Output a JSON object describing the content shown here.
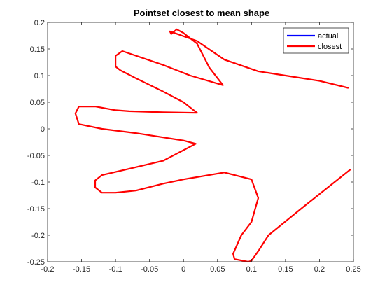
{
  "chart_data": {
    "type": "line",
    "title": "Pointset closest to mean shape",
    "xlabel": "",
    "ylabel": "",
    "xlim": [
      -0.2,
      0.25
    ],
    "ylim": [
      -0.25,
      0.2
    ],
    "x_ticks": [
      -0.2,
      -0.15,
      -0.1,
      -0.05,
      0,
      0.05,
      0.1,
      0.15,
      0.2,
      0.25
    ],
    "x_tick_labels": [
      "-0.2",
      "-0.15",
      "-0.1",
      "-0.05",
      "0",
      "0.05",
      "0.1",
      "0.15",
      "0.2",
      "0.25"
    ],
    "y_ticks": [
      -0.25,
      -0.2,
      -0.15,
      -0.1,
      -0.05,
      0,
      0.05,
      0.1,
      0.15,
      0.2
    ],
    "y_tick_labels": [
      "-0.25",
      "-0.2",
      "-0.15",
      "-0.1",
      "-0.05",
      "0",
      "0.05",
      "0.1",
      "0.15",
      "0.2"
    ],
    "grid": false,
    "box": true,
    "legend": {
      "placement": "top-right",
      "entries": [
        {
          "name": "actual",
          "color": "#0000ff"
        },
        {
          "name": "closest",
          "color": "#ff0000"
        }
      ]
    },
    "series": [
      {
        "name": "closest",
        "color": "#ff0000",
        "x": [
          0.242,
          0.2,
          0.15,
          0.11,
          0.06,
          0.02,
          -0.02,
          -0.018,
          -0.01,
          0.0,
          0.02,
          0.038,
          0.058,
          0.01,
          -0.03,
          -0.09,
          -0.1,
          -0.1,
          -0.093,
          -0.07,
          -0.03,
          0.0,
          0.02,
          -0.03,
          -0.08,
          -0.1,
          -0.13,
          -0.154,
          -0.159,
          -0.154,
          -0.12,
          -0.07,
          -0.03,
          0.0,
          0.018,
          -0.03,
          -0.09,
          -0.12,
          -0.13,
          -0.13,
          -0.12,
          -0.1,
          -0.07,
          -0.03,
          0.0,
          0.06,
          0.1,
          0.11,
          0.1,
          0.085,
          0.073,
          0.075,
          0.095,
          0.1,
          0.11,
          0.125,
          0.175,
          0.245
        ],
        "y": [
          0.077,
          0.09,
          0.1,
          0.108,
          0.13,
          0.165,
          0.183,
          0.178,
          0.187,
          0.18,
          0.16,
          0.115,
          0.082,
          0.1,
          0.12,
          0.146,
          0.137,
          0.117,
          0.11,
          0.095,
          0.07,
          0.05,
          0.03,
          0.031,
          0.033,
          0.035,
          0.042,
          0.042,
          0.029,
          0.009,
          0.0,
          -0.008,
          -0.016,
          -0.022,
          -0.028,
          -0.06,
          -0.078,
          -0.087,
          -0.097,
          -0.11,
          -0.12,
          -0.12,
          -0.116,
          -0.103,
          -0.095,
          -0.082,
          -0.095,
          -0.13,
          -0.175,
          -0.2,
          -0.235,
          -0.245,
          -0.25,
          -0.248,
          -0.23,
          -0.2,
          -0.148,
          -0.077
        ]
      }
    ]
  }
}
